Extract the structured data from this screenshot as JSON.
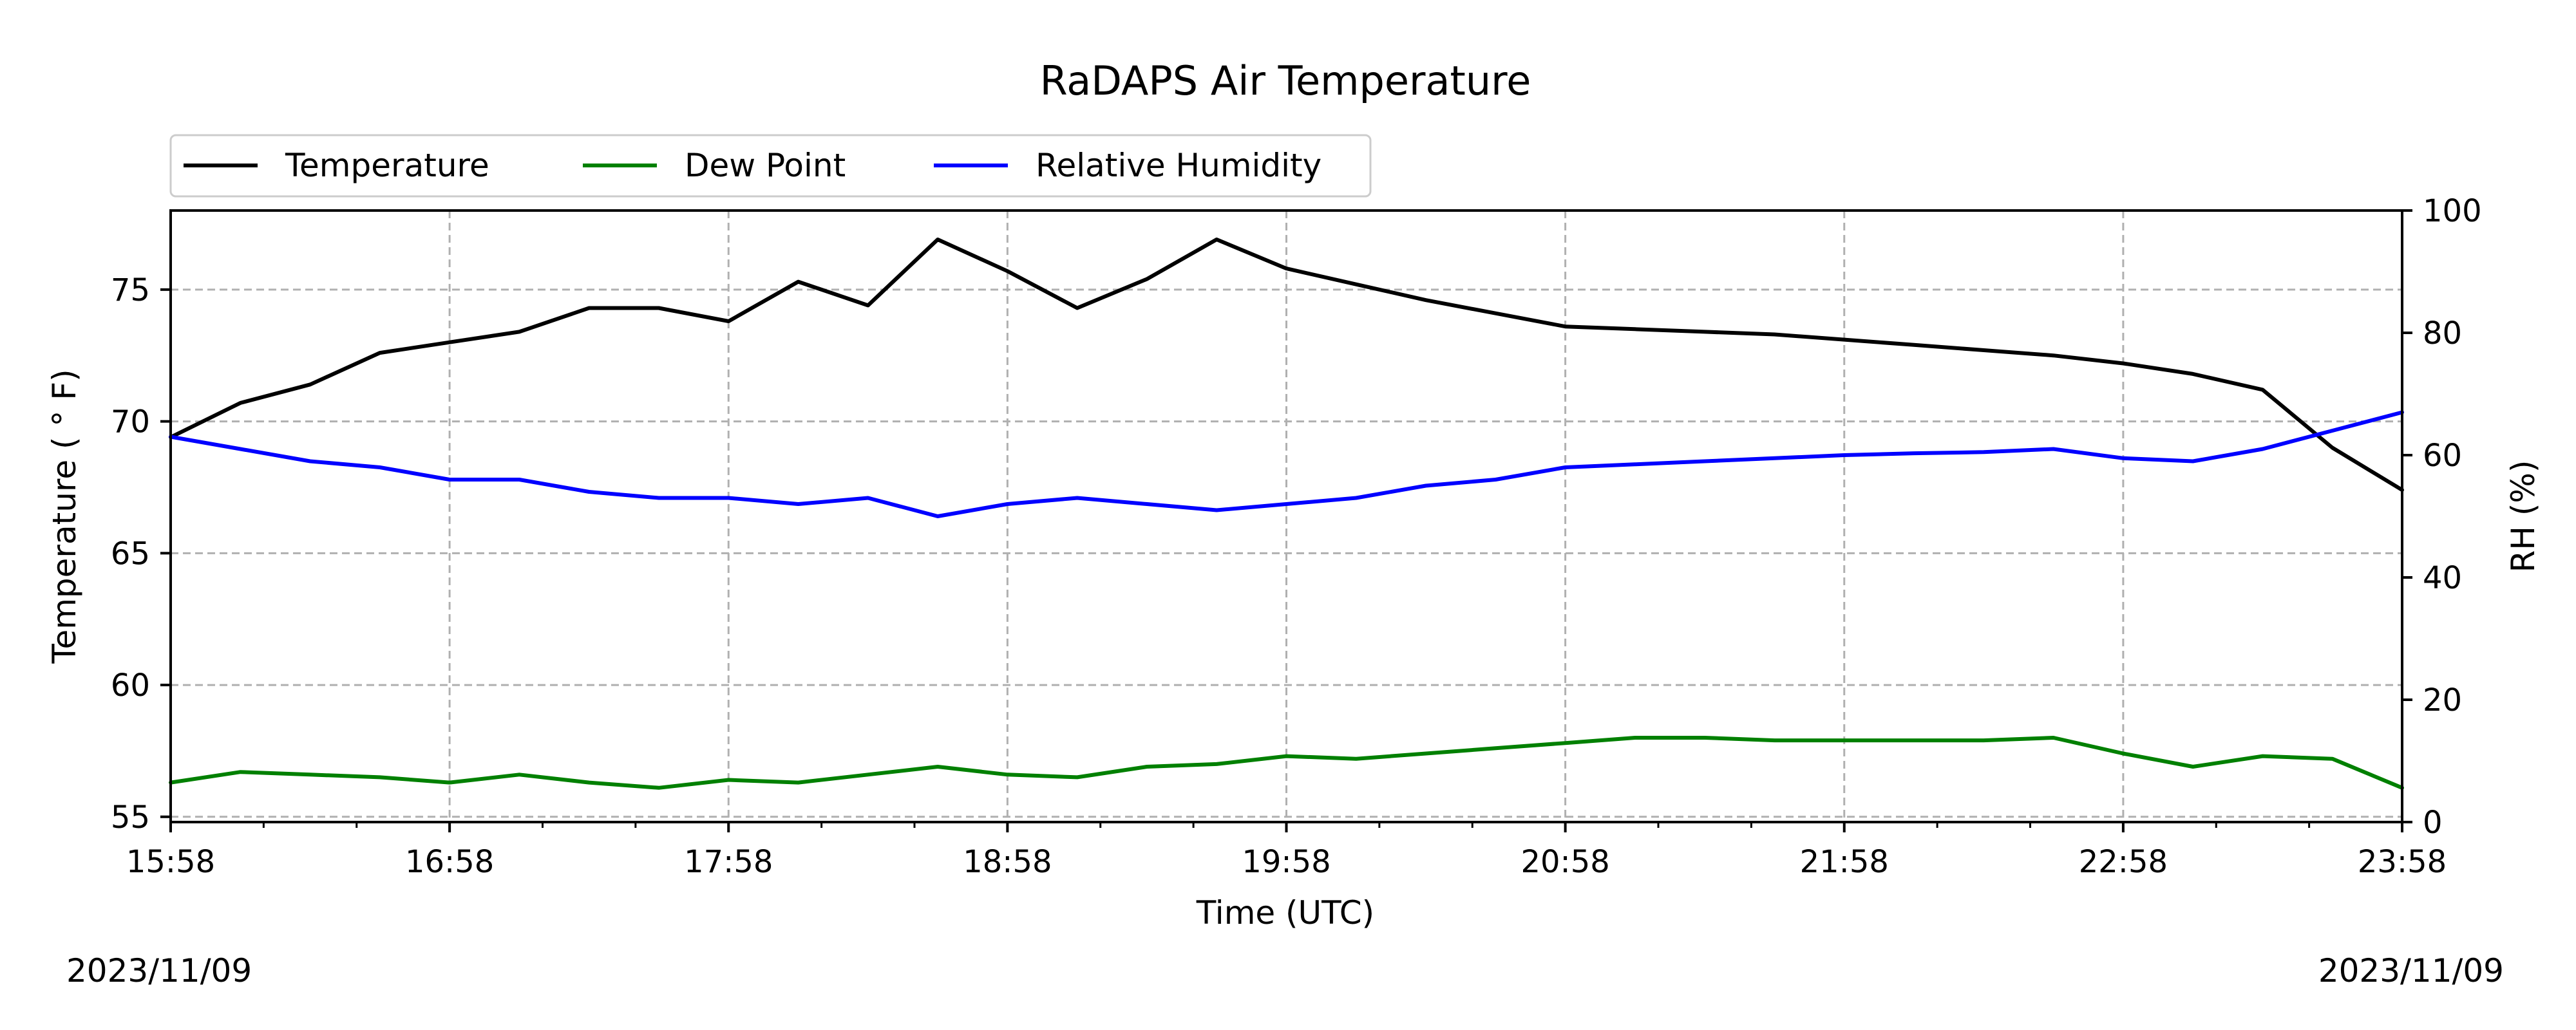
{
  "chart_data": {
    "type": "line",
    "title": "RaDAPS Air Temperature",
    "xlabel": "Time (UTC)",
    "ylabel": "Temperature ( $^\\circ$F)",
    "ylabel_display": "Temperature ( ° F)",
    "y2label": "RH (%)",
    "x_ticks": [
      "15:58",
      "16:58",
      "17:58",
      "18:58",
      "19:58",
      "20:58",
      "21:58",
      "22:58",
      "23:58"
    ],
    "ylim": [
      54.8,
      78
    ],
    "y_ticks": [
      "55",
      "60",
      "65",
      "70",
      "75"
    ],
    "y2lim": [
      0,
      100
    ],
    "y2_ticks": [
      "0",
      "20",
      "40",
      "60",
      "80",
      "100"
    ],
    "grid": true,
    "legend_placement": "top-left, above plot",
    "x_hours_since_start": [
      0,
      0.25,
      0.5,
      0.75,
      1.0,
      1.25,
      1.5,
      1.75,
      2.0,
      2.25,
      2.5,
      2.75,
      3.0,
      3.25,
      3.5,
      3.75,
      4.0,
      4.25,
      4.5,
      4.75,
      5.0,
      5.25,
      5.5,
      5.75,
      6.0,
      6.25,
      6.5,
      6.75,
      7.0,
      7.25,
      7.5,
      7.75,
      8.0
    ],
    "series": [
      {
        "name": "Temperature",
        "color": "#000000",
        "axis": "left",
        "values": [
          69.4,
          70.7,
          71.4,
          72.6,
          73.0,
          73.4,
          74.3,
          74.3,
          73.8,
          75.3,
          74.4,
          76.9,
          75.7,
          74.3,
          75.4,
          76.9,
          75.8,
          75.2,
          74.6,
          74.1,
          73.6,
          73.5,
          73.4,
          73.3,
          73.1,
          72.9,
          72.7,
          72.5,
          72.2,
          71.8,
          71.2,
          69.0,
          67.4
        ]
      },
      {
        "name": "Dew Point",
        "color": "#008000",
        "axis": "left",
        "values": [
          56.3,
          56.7,
          56.6,
          56.5,
          56.3,
          56.6,
          56.3,
          56.1,
          56.4,
          56.3,
          56.6,
          56.9,
          56.6,
          56.5,
          56.9,
          57.0,
          57.3,
          57.2,
          57.4,
          57.6,
          57.8,
          58.0,
          58.0,
          57.9,
          57.9,
          57.9,
          57.9,
          58.0,
          57.4,
          56.9,
          57.3,
          57.2,
          56.1
        ]
      },
      {
        "name": "Relative Humidity",
        "color": "#0000ff",
        "axis": "right",
        "values": [
          63,
          61,
          59,
          58,
          56,
          56,
          54,
          53,
          53,
          52,
          53,
          50,
          52,
          53,
          52,
          51,
          52,
          53,
          55,
          56,
          58,
          58.5,
          59,
          59.5,
          60,
          60.3,
          60.5,
          61,
          59.5,
          59,
          61,
          64,
          67
        ]
      }
    ],
    "date_left": "2023/11/09",
    "date_right": "2023/11/09"
  }
}
